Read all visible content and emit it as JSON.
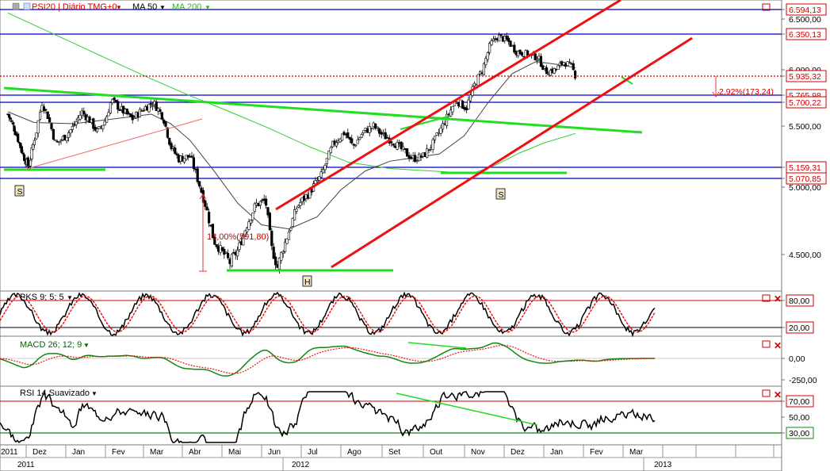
{
  "panels": {
    "price": {
      "title": "PSI20 | Diário TMG+0",
      "ma50_label": "MA 50",
      "ma200_label": "MA 200",
      "y_labels": [
        "6.594,13",
        "6.500,00",
        "6.350,13",
        "6.000,00",
        "5.935,32",
        "5.765,98",
        "5.700,22",
        "5.500,00",
        "5.159,31",
        "5.070,85",
        "5.000,00",
        "4.500,00"
      ],
      "ylim": [
        4350,
        6650
      ],
      "annotations": {
        "pct_up": "13,00%(591,80)",
        "pct_down": "2,92%(173,24)",
        "s_left": "S",
        "s_right": "S",
        "h": "H"
      }
    },
    "stoch": {
      "title": "PKS 9; 5; 5",
      "y_labels": [
        "80,00",
        "20,00"
      ]
    },
    "macd": {
      "title": "MACD 26; 12; 9",
      "y_labels": [
        "0,00",
        "-250,00"
      ]
    },
    "rsi": {
      "title": "RSI 14 Suavizado",
      "y_labels": [
        "70,00",
        "50,00",
        "30,00"
      ]
    }
  },
  "time_axis": {
    "months": [
      "2011",
      "Dez",
      "Jan",
      "Fev",
      "Mar",
      "Abr",
      "Mai",
      "Jun",
      "Jul",
      "Ago",
      "Set",
      "Out",
      "Nov",
      "Dez",
      "Jan",
      "Fev",
      "Mar"
    ],
    "years": [
      "2011",
      "2012",
      "2013"
    ]
  },
  "colors": {
    "candle_up": "#ffffff",
    "candle_down": "#000000",
    "ma50": "#000000",
    "ma200": "#33cc33",
    "hline": "#0000cc",
    "channel": "#ee1111",
    "trend_green": "#22dd22",
    "ref_dotted": "#cc0000"
  },
  "chart_data": {
    "type": "line",
    "title": "PSI20 | Diário TMG+0",
    "x_unit": "months (Nov 2011 – Mar 2013)",
    "ylim": [
      4350,
      6650
    ],
    "horizontal_levels": [
      6594.13,
      6350.13,
      5765.98,
      5700.22,
      5159.31,
      5070.85
    ],
    "reference_level": 5935.32,
    "close_path": [
      [
        0,
        5600
      ],
      [
        0.3,
        5450
      ],
      [
        0.6,
        5250
      ],
      [
        0.8,
        5160
      ],
      [
        1.05,
        5450
      ],
      [
        1.2,
        5700
      ],
      [
        1.35,
        5580
      ],
      [
        1.55,
        5350
      ],
      [
        1.8,
        5420
      ],
      [
        2.0,
        5500
      ],
      [
        2.2,
        5620
      ],
      [
        2.4,
        5550
      ],
      [
        2.6,
        5450
      ],
      [
        2.8,
        5550
      ],
      [
        2.95,
        5720
      ],
      [
        3.2,
        5640
      ],
      [
        3.5,
        5560
      ],
      [
        3.8,
        5650
      ],
      [
        4.05,
        5700
      ],
      [
        4.3,
        5580
      ],
      [
        4.5,
        5330
      ],
      [
        4.7,
        5230
      ],
      [
        5.0,
        5250
      ],
      [
        5.2,
        5050
      ],
      [
        5.4,
        4850
      ],
      [
        5.6,
        4600
      ],
      [
        5.8,
        4520
      ],
      [
        6.0,
        4450
      ],
      [
        6.2,
        4530
      ],
      [
        6.4,
        4700
      ],
      [
        6.65,
        4870
      ],
      [
        6.9,
        4900
      ],
      [
        7.05,
        4550
      ],
      [
        7.2,
        4420
      ],
      [
        7.45,
        4640
      ],
      [
        7.7,
        4860
      ],
      [
        8.0,
        4960
      ],
      [
        8.3,
        5090
      ],
      [
        8.6,
        5350
      ],
      [
        8.9,
        5450
      ],
      [
        9.1,
        5330
      ],
      [
        9.35,
        5450
      ],
      [
        9.6,
        5500
      ],
      [
        9.8,
        5430
      ],
      [
        10.05,
        5380
      ],
      [
        10.3,
        5300
      ],
      [
        10.55,
        5230
      ],
      [
        10.8,
        5250
      ],
      [
        11.05,
        5360
      ],
      [
        11.3,
        5520
      ],
      [
        11.6,
        5720
      ],
      [
        11.85,
        5650
      ],
      [
        12.05,
        5860
      ],
      [
        12.25,
        6000
      ],
      [
        12.45,
        6250
      ],
      [
        12.65,
        6330
      ],
      [
        12.9,
        6280
      ],
      [
        13.1,
        6180
      ],
      [
        13.4,
        6150
      ],
      [
        13.65,
        6120
      ],
      [
        13.85,
        5980
      ],
      [
        14.1,
        6000
      ],
      [
        14.3,
        6080
      ],
      [
        14.5,
        6030
      ],
      [
        14.6,
        5940
      ]
    ],
    "ma50_path": [
      [
        0,
        5620
      ],
      [
        1.0,
        5530
      ],
      [
        2.0,
        5520
      ],
      [
        3.0,
        5560
      ],
      [
        4.0,
        5600
      ],
      [
        4.5,
        5520
      ],
      [
        5.0,
        5380
      ],
      [
        5.6,
        5130
      ],
      [
        6.2,
        4880
      ],
      [
        6.8,
        4720
      ],
      [
        7.5,
        4690
      ],
      [
        8.2,
        4780
      ],
      [
        8.8,
        4980
      ],
      [
        9.4,
        5130
      ],
      [
        10.0,
        5210
      ],
      [
        10.6,
        5240
      ],
      [
        11.2,
        5270
      ],
      [
        11.8,
        5420
      ],
      [
        12.4,
        5700
      ],
      [
        13.0,
        5960
      ],
      [
        13.6,
        6080
      ],
      [
        14.2,
        6050
      ],
      [
        14.6,
        6020
      ]
    ],
    "ma200_path": [
      [
        0,
        6560
      ],
      [
        1.0,
        6440
      ],
      [
        2.0,
        6260
      ],
      [
        3.0,
        6080
      ],
      [
        4.0,
        5910
      ],
      [
        5.0,
        5760
      ],
      [
        6.0,
        5620
      ],
      [
        7.0,
        5480
      ],
      [
        8.0,
        5330
      ],
      [
        9.0,
        5200
      ],
      [
        10.0,
        5150
      ],
      [
        11.0,
        5130
      ],
      [
        12.0,
        5110
      ],
      [
        12.6,
        5180
      ],
      [
        13.2,
        5280
      ],
      [
        13.8,
        5360
      ],
      [
        14.6,
        5440
      ]
    ],
    "series": [
      {
        "name": "MA 50",
        "values": [
          5620,
          5530,
          5520,
          5560,
          5600,
          5380,
          4880,
          4690,
          4980,
          5210,
          5270,
          5700,
          6080,
          6020
        ]
      },
      {
        "name": "MA 200",
        "values": [
          6560,
          6440,
          6260,
          6080,
          5910,
          5760,
          5620,
          5480,
          5330,
          5200,
          5130,
          5110,
          5280,
          5440
        ]
      }
    ],
    "indicators": {
      "stochastic": {
        "levels": [
          80,
          20
        ]
      },
      "macd": {
        "levels": [
          0,
          -250
        ]
      },
      "rsi": {
        "levels": [
          70,
          50,
          30
        ]
      }
    }
  }
}
